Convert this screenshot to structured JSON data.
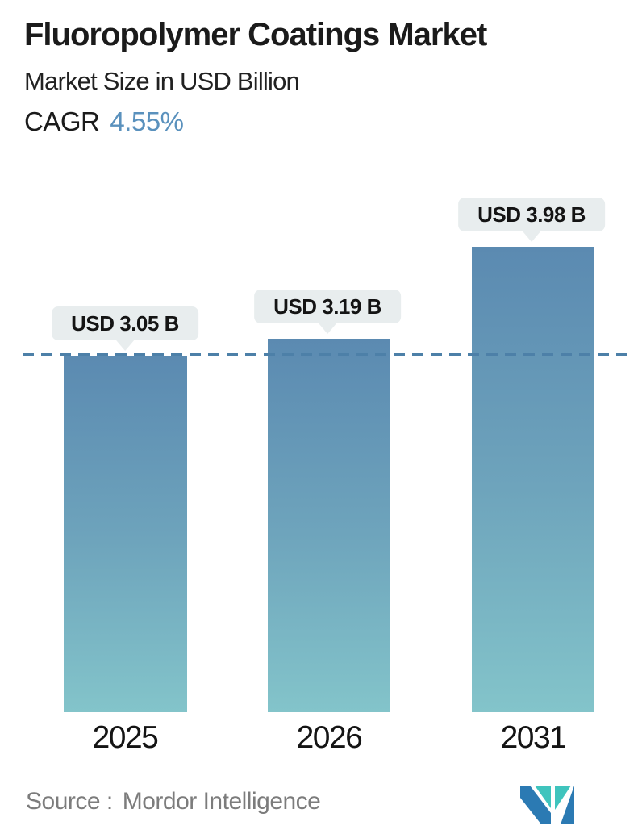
{
  "header": {
    "title": "Fluoropolymer Coatings Market",
    "subtitle": "Market Size in USD Billion",
    "cagr_label": "CAGR",
    "cagr_value": "4.55%"
  },
  "chart_data": {
    "type": "bar",
    "title": "Fluoropolymer Coatings Market",
    "subtitle": "Market Size in USD Billion",
    "cagr": "4.55%",
    "unit": "USD Billion",
    "categories": [
      "2025",
      "2026",
      "2031"
    ],
    "values": [
      3.05,
      3.19,
      3.98
    ],
    "value_labels": [
      "USD 3.05 B",
      "USD 3.19 B",
      "USD 3.98 B"
    ],
    "ylim": [
      0,
      4.4
    ],
    "grid": false,
    "legend": "none",
    "reference_line_value": 3.05,
    "reference_line_style": "dashed",
    "reference_line_color": "#4d80a8",
    "bar_gradient_top": "#5b8ab1",
    "bar_gradient_bottom": "#83c4ca",
    "callout_bg": "#e8edee"
  },
  "footer": {
    "source_label": "Source :",
    "source_name": "Mordor Intelligence",
    "logo": "mordor-intelligence-logo"
  },
  "colors": {
    "accent_blue": "#5a91bd",
    "text_dark": "#1b1b1b",
    "source_gray": "#7c7c7c",
    "logo_teal": "#3fc4bd",
    "logo_blue": "#2b7ab3"
  }
}
